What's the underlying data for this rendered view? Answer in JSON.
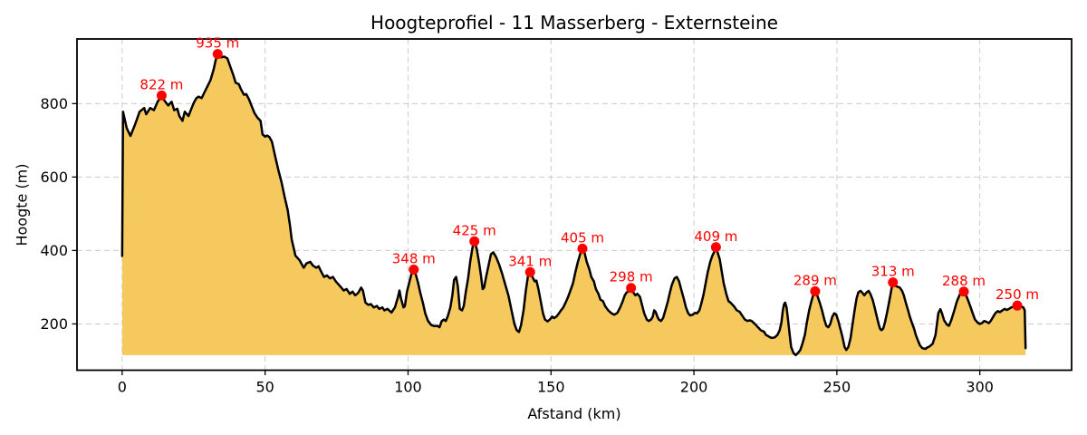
{
  "figure": {
    "background": "#ffffff"
  },
  "chart_data": {
    "type": "area",
    "title": "Hoogteprofiel - 11 Masserberg - Externsteine",
    "xlabel": "Afstand (km)",
    "ylabel": "Hoogte (m)",
    "x_ticks": [
      0,
      50,
      100,
      150,
      200,
      250,
      300
    ],
    "y_ticks": [
      200,
      400,
      600,
      800
    ],
    "xlim": [
      -15.8,
      332.1
    ],
    "ylim": [
      74,
      976
    ],
    "grid": true,
    "baseline_m": 115,
    "series_name": "hoogteprofiel",
    "colors": {
      "fill": "#F6C95E",
      "line": "#000000",
      "marker": "#FF0000",
      "annotation": "#FF0000",
      "grid": "#CCCCCC",
      "axis": "#000000",
      "text": "#000000"
    },
    "peaks": [
      {
        "km": 13.8,
        "m": 822,
        "label": "822 m"
      },
      {
        "km": 33.4,
        "m": 935,
        "label": "935 m"
      },
      {
        "km": 102.0,
        "m": 348,
        "label": "348 m"
      },
      {
        "km": 123.2,
        "m": 425,
        "label": "425 m"
      },
      {
        "km": 142.7,
        "m": 341,
        "label": "341 m"
      },
      {
        "km": 161.0,
        "m": 405,
        "label": "405 m"
      },
      {
        "km": 178.0,
        "m": 298,
        "label": "298 m"
      },
      {
        "km": 207.7,
        "m": 409,
        "label": "409 m"
      },
      {
        "km": 242.4,
        "m": 289,
        "label": "289 m"
      },
      {
        "km": 269.6,
        "m": 313,
        "label": "313 m"
      },
      {
        "km": 294.4,
        "m": 288,
        "label": "288 m"
      },
      {
        "km": 313.1,
        "m": 250,
        "label": "250 m"
      }
    ],
    "profile": [
      [
        0,
        385
      ],
      [
        0.3,
        778
      ],
      [
        1.6,
        733
      ],
      [
        2.9,
        712
      ],
      [
        4.5,
        743
      ],
      [
        6.1,
        778
      ],
      [
        7.7,
        788
      ],
      [
        8.4,
        771
      ],
      [
        9.8,
        788
      ],
      [
        11.1,
        782
      ],
      [
        12.4,
        805
      ],
      [
        13.8,
        822
      ],
      [
        14.9,
        807
      ],
      [
        16.1,
        795
      ],
      [
        17.3,
        805
      ],
      [
        18.2,
        782
      ],
      [
        19.3,
        786
      ],
      [
        20,
        766
      ],
      [
        21.1,
        753
      ],
      [
        21.9,
        778
      ],
      [
        23.2,
        766
      ],
      [
        24.3,
        788
      ],
      [
        25.1,
        803
      ],
      [
        26,
        815
      ],
      [
        26.7,
        819
      ],
      [
        27.8,
        815
      ],
      [
        28.8,
        831
      ],
      [
        29.9,
        848
      ],
      [
        30.9,
        864
      ],
      [
        32,
        893
      ],
      [
        32.7,
        918
      ],
      [
        33.4,
        935
      ],
      [
        34.6,
        926
      ],
      [
        35.7,
        928
      ],
      [
        36.8,
        923
      ],
      [
        38.9,
        877
      ],
      [
        39.7,
        857
      ],
      [
        40.8,
        853
      ],
      [
        41.5,
        840
      ],
      [
        42.6,
        824
      ],
      [
        43.4,
        826
      ],
      [
        44.4,
        811
      ],
      [
        45.2,
        795
      ],
      [
        46.3,
        774
      ],
      [
        47.3,
        762
      ],
      [
        48.4,
        753
      ],
      [
        49.1,
        716
      ],
      [
        50,
        710
      ],
      [
        50.7,
        713
      ],
      [
        51.5,
        709
      ],
      [
        52.4,
        696
      ],
      [
        53.7,
        650
      ],
      [
        54.7,
        617
      ],
      [
        55.8,
        584
      ],
      [
        56.8,
        547
      ],
      [
        57.9,
        510
      ],
      [
        58.7,
        468
      ],
      [
        59.3,
        430
      ],
      [
        60.1,
        403
      ],
      [
        60.6,
        386
      ],
      [
        62.1,
        373
      ],
      [
        63.5,
        353
      ],
      [
        64.5,
        365
      ],
      [
        65.8,
        369
      ],
      [
        66.7,
        359
      ],
      [
        67.9,
        353
      ],
      [
        68.7,
        357
      ],
      [
        69.5,
        344
      ],
      [
        70.6,
        328
      ],
      [
        71.6,
        332
      ],
      [
        72.7,
        324
      ],
      [
        73.7,
        328
      ],
      [
        74.8,
        315
      ],
      [
        76.2,
        303
      ],
      [
        77.5,
        291
      ],
      [
        78.5,
        295
      ],
      [
        79.6,
        282
      ],
      [
        80.6,
        288
      ],
      [
        81.5,
        278
      ],
      [
        82.5,
        284
      ],
      [
        83.6,
        299
      ],
      [
        84.2,
        291
      ],
      [
        85.1,
        258
      ],
      [
        86.1,
        252
      ],
      [
        87,
        254
      ],
      [
        88,
        245
      ],
      [
        89.1,
        249
      ],
      [
        89.9,
        241
      ],
      [
        91,
        245
      ],
      [
        91.7,
        237
      ],
      [
        92.8,
        241
      ],
      [
        94.2,
        231
      ],
      [
        95.4,
        245
      ],
      [
        96.5,
        274
      ],
      [
        97,
        291
      ],
      [
        97.5,
        270
      ],
      [
        98.4,
        245
      ],
      [
        98.9,
        249
      ],
      [
        99.6,
        287
      ],
      [
        100.5,
        315
      ],
      [
        101.2,
        336
      ],
      [
        102,
        348
      ],
      [
        102.8,
        332
      ],
      [
        103.5,
        312
      ],
      [
        104.2,
        287
      ],
      [
        105.3,
        254
      ],
      [
        106,
        229
      ],
      [
        107,
        208
      ],
      [
        108.1,
        197
      ],
      [
        109.2,
        194
      ],
      [
        110.2,
        195
      ],
      [
        111,
        191
      ],
      [
        111.8,
        208
      ],
      [
        112.5,
        212
      ],
      [
        113.2,
        208
      ],
      [
        113.9,
        221
      ],
      [
        114.8,
        245
      ],
      [
        115.5,
        278
      ],
      [
        116.1,
        320
      ],
      [
        116.8,
        328
      ],
      [
        117.4,
        303
      ],
      [
        118.1,
        241
      ],
      [
        118.9,
        237
      ],
      [
        119.5,
        249
      ],
      [
        120.2,
        287
      ],
      [
        121,
        324
      ],
      [
        121.8,
        373
      ],
      [
        122.6,
        410
      ],
      [
        123.2,
        425
      ],
      [
        124,
        405
      ],
      [
        124.8,
        369
      ],
      [
        125.5,
        332
      ],
      [
        126.1,
        295
      ],
      [
        126.6,
        299
      ],
      [
        127.3,
        328
      ],
      [
        128.2,
        361
      ],
      [
        129,
        390
      ],
      [
        129.8,
        395
      ],
      [
        130.8,
        382
      ],
      [
        131.9,
        361
      ],
      [
        132.9,
        337
      ],
      [
        134,
        307
      ],
      [
        135.1,
        278
      ],
      [
        136.2,
        237
      ],
      [
        137.2,
        200
      ],
      [
        138,
        183
      ],
      [
        138.8,
        178
      ],
      [
        139.5,
        196
      ],
      [
        140.4,
        237
      ],
      [
        141.2,
        291
      ],
      [
        141.9,
        328
      ],
      [
        142.7,
        341
      ],
      [
        143.5,
        328
      ],
      [
        144.3,
        316
      ],
      [
        144.9,
        318
      ],
      [
        145.6,
        295
      ],
      [
        146.5,
        258
      ],
      [
        147.2,
        229
      ],
      [
        147.9,
        212
      ],
      [
        148.8,
        207
      ],
      [
        149.6,
        212
      ],
      [
        150.4,
        220
      ],
      [
        151.1,
        216
      ],
      [
        151.9,
        220
      ],
      [
        152.8,
        229
      ],
      [
        153.5,
        237
      ],
      [
        154.3,
        245
      ],
      [
        155.1,
        258
      ],
      [
        156,
        274
      ],
      [
        156.8,
        291
      ],
      [
        157.7,
        311
      ],
      [
        158.5,
        340
      ],
      [
        159.4,
        369
      ],
      [
        160.2,
        390
      ],
      [
        161,
        405
      ],
      [
        161.7,
        395
      ],
      [
        162.5,
        369
      ],
      [
        163.4,
        349
      ],
      [
        164.1,
        328
      ],
      [
        165,
        316
      ],
      [
        165.7,
        295
      ],
      [
        166.6,
        282
      ],
      [
        167.3,
        266
      ],
      [
        168.2,
        262
      ],
      [
        168.9,
        249
      ],
      [
        170,
        237
      ],
      [
        171,
        230
      ],
      [
        172.1,
        225
      ],
      [
        173.2,
        230
      ],
      [
        174.2,
        245
      ],
      [
        175.1,
        262
      ],
      [
        175.8,
        278
      ],
      [
        176.5,
        286
      ],
      [
        177.2,
        290
      ],
      [
        178,
        298
      ],
      [
        178.6,
        288
      ],
      [
        179.5,
        278
      ],
      [
        180.2,
        282
      ],
      [
        181.1,
        274
      ],
      [
        181.8,
        253
      ],
      [
        182.6,
        229
      ],
      [
        183.5,
        212
      ],
      [
        184.2,
        208
      ],
      [
        185,
        212
      ],
      [
        185.6,
        220
      ],
      [
        186.1,
        237
      ],
      [
        186.6,
        233
      ],
      [
        187.2,
        220
      ],
      [
        187.7,
        212
      ],
      [
        188.5,
        208
      ],
      [
        189.2,
        216
      ],
      [
        190,
        237
      ],
      [
        190.9,
        262
      ],
      [
        191.6,
        286
      ],
      [
        192.3,
        307
      ],
      [
        193.2,
        324
      ],
      [
        194,
        328
      ],
      [
        194.8,
        316
      ],
      [
        195.5,
        295
      ],
      [
        196.4,
        270
      ],
      [
        197.2,
        245
      ],
      [
        198,
        229
      ],
      [
        198.7,
        223
      ],
      [
        199.5,
        225
      ],
      [
        200.4,
        230
      ],
      [
        201.1,
        229
      ],
      [
        201.9,
        237
      ],
      [
        202.5,
        253
      ],
      [
        203.3,
        278
      ],
      [
        204,
        307
      ],
      [
        204.8,
        340
      ],
      [
        205.7,
        369
      ],
      [
        206.4,
        385
      ],
      [
        207.2,
        398
      ],
      [
        207.7,
        409
      ],
      [
        208.5,
        389
      ],
      [
        209,
        377
      ],
      [
        209.7,
        344
      ],
      [
        210.4,
        311
      ],
      [
        211.3,
        282
      ],
      [
        212.1,
        262
      ],
      [
        212.8,
        258
      ],
      [
        213.9,
        249
      ],
      [
        215,
        237
      ],
      [
        216,
        233
      ],
      [
        217.1,
        220
      ],
      [
        217.8,
        212
      ],
      [
        218.7,
        208
      ],
      [
        219.5,
        210
      ],
      [
        220.2,
        208
      ],
      [
        221.3,
        200
      ],
      [
        222.4,
        191
      ],
      [
        223.4,
        183
      ],
      [
        224.5,
        179
      ],
      [
        225.2,
        170
      ],
      [
        226.1,
        166
      ],
      [
        227.1,
        162
      ],
      [
        228.2,
        163
      ],
      [
        229.2,
        170
      ],
      [
        230,
        183
      ],
      [
        230.6,
        204
      ],
      [
        231.1,
        237
      ],
      [
        231.5,
        253
      ],
      [
        231.9,
        258
      ],
      [
        232.4,
        245
      ],
      [
        232.9,
        212
      ],
      [
        233.5,
        170
      ],
      [
        234,
        137
      ],
      [
        234.8,
        121
      ],
      [
        235.6,
        115
      ],
      [
        236.4,
        121
      ],
      [
        237.2,
        129
      ],
      [
        237.9,
        145
      ],
      [
        238.8,
        170
      ],
      [
        239.5,
        204
      ],
      [
        240.3,
        237
      ],
      [
        241.1,
        262
      ],
      [
        241.7,
        278
      ],
      [
        242.4,
        289
      ],
      [
        243.1,
        278
      ],
      [
        244,
        258
      ],
      [
        244.8,
        237
      ],
      [
        245.6,
        212
      ],
      [
        246.3,
        195
      ],
      [
        247,
        191
      ],
      [
        247.7,
        200
      ],
      [
        248.4,
        220
      ],
      [
        249.1,
        229
      ],
      [
        249.8,
        225
      ],
      [
        250.5,
        208
      ],
      [
        251.2,
        187
      ],
      [
        251.9,
        166
      ],
      [
        252.7,
        137
      ],
      [
        253.3,
        129
      ],
      [
        254,
        137
      ],
      [
        254.8,
        162
      ],
      [
        255.4,
        195
      ],
      [
        256.2,
        237
      ],
      [
        256.9,
        270
      ],
      [
        257.5,
        286
      ],
      [
        258.3,
        290
      ],
      [
        259,
        284
      ],
      [
        259.6,
        278
      ],
      [
        260.4,
        286
      ],
      [
        261.1,
        290
      ],
      [
        261.7,
        282
      ],
      [
        262.5,
        266
      ],
      [
        263.2,
        245
      ],
      [
        263.8,
        225
      ],
      [
        264.6,
        200
      ],
      [
        265.1,
        187
      ],
      [
        265.6,
        183
      ],
      [
        266.2,
        187
      ],
      [
        266.8,
        204
      ],
      [
        267.5,
        229
      ],
      [
        268.1,
        253
      ],
      [
        268.7,
        278
      ],
      [
        269.2,
        300
      ],
      [
        269.6,
        313
      ],
      [
        270.3,
        304
      ],
      [
        271.3,
        301
      ],
      [
        272,
        299
      ],
      [
        272.8,
        290
      ],
      [
        273.4,
        278
      ],
      [
        274.1,
        258
      ],
      [
        274.9,
        237
      ],
      [
        275.5,
        220
      ],
      [
        276.2,
        204
      ],
      [
        277,
        187
      ],
      [
        277.6,
        170
      ],
      [
        278.4,
        154
      ],
      [
        279.1,
        141
      ],
      [
        279.9,
        134
      ],
      [
        281,
        132
      ],
      [
        281.6,
        136
      ],
      [
        282.3,
        138
      ],
      [
        283.5,
        146
      ],
      [
        284.5,
        170
      ],
      [
        285.5,
        230
      ],
      [
        286.2,
        240
      ],
      [
        286.8,
        228
      ],
      [
        287.5,
        210
      ],
      [
        288.5,
        198
      ],
      [
        289.2,
        195
      ],
      [
        290,
        210
      ],
      [
        291,
        235
      ],
      [
        292,
        262
      ],
      [
        293,
        280
      ],
      [
        294.4,
        288
      ],
      [
        295.2,
        278
      ],
      [
        296,
        262
      ],
      [
        296.8,
        245
      ],
      [
        297.5,
        229
      ],
      [
        298.3,
        212
      ],
      [
        299.2,
        204
      ],
      [
        299.9,
        200
      ],
      [
        300.7,
        202
      ],
      [
        301.5,
        208
      ],
      [
        302.3,
        206
      ],
      [
        303.1,
        202
      ],
      [
        303.8,
        208
      ],
      [
        304.7,
        220
      ],
      [
        305.5,
        230
      ],
      [
        306.3,
        235
      ],
      [
        307,
        232
      ],
      [
        307.9,
        237
      ],
      [
        308.7,
        241
      ],
      [
        309.4,
        238
      ],
      [
        310.2,
        241
      ],
      [
        311,
        245
      ],
      [
        311.8,
        247
      ],
      [
        312.6,
        249
      ],
      [
        313.1,
        250
      ],
      [
        314,
        249
      ],
      [
        314.7,
        247
      ],
      [
        315.2,
        245
      ],
      [
        315.7,
        237
      ],
      [
        316,
        134
      ]
    ]
  }
}
